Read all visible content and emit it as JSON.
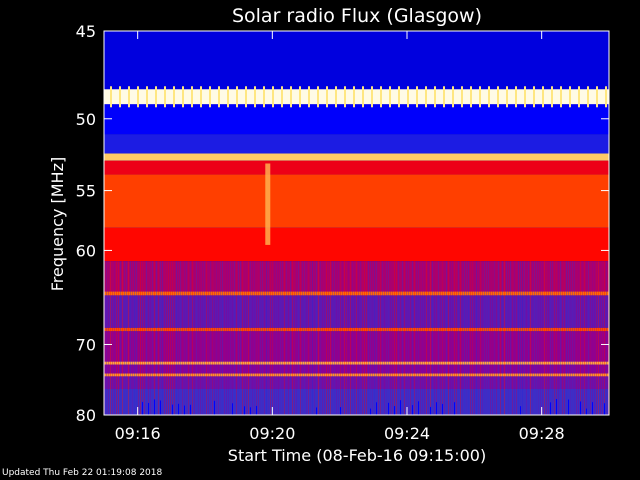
{
  "chart_data": {
    "type": "heatmap",
    "title": "Solar radio Flux (Glasgow)",
    "xlabel": "Start Time (08-Feb-16 09:15:00)",
    "ylabel": "Frequency [MHz]",
    "x_start": "09:15:00",
    "x_end": "09:30:00",
    "x_ticks": [
      "09:16",
      "09:20",
      "09:24",
      "09:28"
    ],
    "x_tick_values_min": [
      1,
      5,
      9,
      13
    ],
    "y_axis": "reversed",
    "ylim": [
      45,
      80
    ],
    "y_scale": "reciprocal",
    "y_ticks": [
      45,
      50,
      55,
      60,
      70,
      80
    ],
    "colormap": [
      "#000033",
      "#0000ff",
      "#3333cc",
      "#880099",
      "#ff0000",
      "#ff6600",
      "#ffee88",
      "#ffffff"
    ],
    "frequency_bands_mhz": [
      {
        "from": 45,
        "to": 48.2,
        "level": 0.12
      },
      {
        "from": 48.2,
        "to": 49.1,
        "level": 0.97
      },
      {
        "from": 49.1,
        "to": 51.0,
        "level": 0.14
      },
      {
        "from": 51.0,
        "to": 52.3,
        "level": 0.22
      },
      {
        "from": 52.3,
        "to": 52.8,
        "level": 0.82
      },
      {
        "from": 52.8,
        "to": 53.8,
        "level": 0.55
      },
      {
        "from": 53.8,
        "to": 58.0,
        "level": 0.66
      },
      {
        "from": 58.0,
        "to": 61.0,
        "level": 0.58
      },
      {
        "from": 61.0,
        "to": 64.0,
        "level": 0.47
      },
      {
        "from": 64.0,
        "to": 64.4,
        "level": 0.72
      },
      {
        "from": 64.4,
        "to": 68.0,
        "level": 0.36
      },
      {
        "from": 68.0,
        "to": 68.4,
        "level": 0.68
      },
      {
        "from": 68.4,
        "to": 72.2,
        "level": 0.44
      },
      {
        "from": 72.2,
        "to": 72.6,
        "level": 0.78
      },
      {
        "from": 72.6,
        "to": 73.8,
        "level": 0.42
      },
      {
        "from": 73.8,
        "to": 74.2,
        "level": 0.76
      },
      {
        "from": 74.2,
        "to": 76.0,
        "level": 0.38
      },
      {
        "from": 76.0,
        "to": 80.0,
        "level": 0.3
      }
    ],
    "bursts": [
      {
        "time_min": 4.85,
        "from_mhz": 53.0,
        "to_mhz": 59.5,
        "level": 0.8
      }
    ]
  },
  "footer": {
    "updated": "Updated Thu Feb 22 01:19:08 2018"
  }
}
